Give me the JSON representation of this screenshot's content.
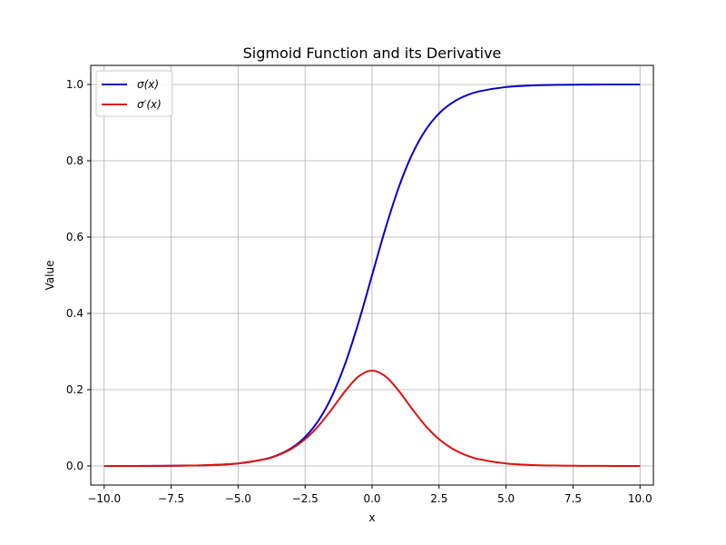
{
  "chart_data": {
    "type": "line",
    "title": "Sigmoid Function and its Derivative",
    "xlabel": "x",
    "ylabel": "Value",
    "xlim": [
      -10.5,
      10.5
    ],
    "ylim": [
      -0.05,
      1.05
    ],
    "x_ticks": [
      -10.0,
      -7.5,
      -5.0,
      -2.5,
      0.0,
      2.5,
      5.0,
      7.5,
      10.0
    ],
    "x_tick_labels": [
      "−10.0",
      "−7.5",
      "−5.0",
      "−2.5",
      "0.0",
      "2.5",
      "5.0",
      "7.5",
      "10.0"
    ],
    "y_ticks": [
      0.0,
      0.2,
      0.4,
      0.6,
      0.8,
      1.0
    ],
    "y_tick_labels": [
      "0.0",
      "0.2",
      "0.4",
      "0.6",
      "0.8",
      "1.0"
    ],
    "grid": true,
    "legend_position": "top-left",
    "x": [
      -10,
      -9,
      -8,
      -7,
      -6,
      -5,
      -4,
      -3.5,
      -3,
      -2.5,
      -2,
      -1.5,
      -1,
      -0.5,
      0,
      0.5,
      1,
      1.5,
      2,
      2.5,
      3,
      3.5,
      4,
      5,
      6,
      7,
      8,
      9,
      10
    ],
    "series": [
      {
        "name": "σ(x)",
        "color": "#0000cc",
        "values": [
          4.54e-05,
          0.0001234,
          0.0003354,
          0.0009111,
          0.002473,
          0.006693,
          0.01799,
          0.02931,
          0.04743,
          0.07586,
          0.1192,
          0.1824,
          0.2689,
          0.3775,
          0.5,
          0.6225,
          0.7311,
          0.8176,
          0.8808,
          0.9241,
          0.9526,
          0.9707,
          0.982,
          0.9933,
          0.9975,
          0.9991,
          0.9997,
          0.9999,
          1.0
        ]
      },
      {
        "name": "σ′(x)",
        "color": "#dd1111",
        "values": [
          4.54e-05,
          0.0001234,
          0.0003353,
          0.0009102,
          0.002467,
          0.006648,
          0.01766,
          0.02845,
          0.04518,
          0.07011,
          0.105,
          0.1491,
          0.1966,
          0.235,
          0.25,
          0.235,
          0.1966,
          0.1491,
          0.105,
          0.07011,
          0.04518,
          0.02845,
          0.01766,
          0.006648,
          0.002467,
          0.0009102,
          0.0003353,
          0.0001234,
          4.54e-05
        ]
      }
    ]
  }
}
